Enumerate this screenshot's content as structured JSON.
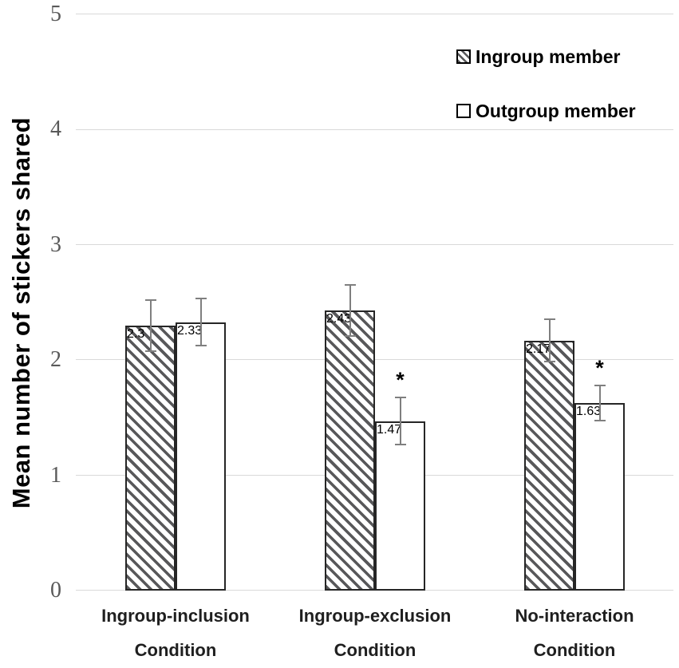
{
  "chart_data": {
    "type": "bar",
    "title": "",
    "xlabel": "",
    "ylabel": "Mean number of stickers shared",
    "ylim": [
      0,
      5
    ],
    "yticks": [
      0,
      1,
      2,
      3,
      4,
      5
    ],
    "grid": true,
    "legend_position": "top-right",
    "categories": [
      {
        "line1": "Ingroup-inclusion",
        "line2": "Condition"
      },
      {
        "line1": "Ingroup-exclusion",
        "line2": "Condition"
      },
      {
        "line1": "No-interaction",
        "line2": "Condition"
      }
    ],
    "series": [
      {
        "name": "Ingroup member",
        "style": "hatched",
        "values": [
          2.3,
          2.43,
          2.17
        ],
        "errors": [
          0.23,
          0.23,
          0.19
        ],
        "significance": [
          "",
          "",
          ""
        ]
      },
      {
        "name": "Outgroup member",
        "style": "plain",
        "values": [
          2.33,
          1.47,
          1.63
        ],
        "errors": [
          0.21,
          0.21,
          0.16
        ],
        "significance": [
          "",
          "*",
          "*"
        ]
      }
    ]
  },
  "colors": {
    "background": "#ffffff",
    "gridline": "#d9d9d9",
    "bar_border": "#262626",
    "hatch_stripe": "#58585a",
    "error_bar": "#7f7f7f",
    "tick_text": "#595959",
    "label_text": "#1f1f1f",
    "legend_text": "#000000"
  }
}
